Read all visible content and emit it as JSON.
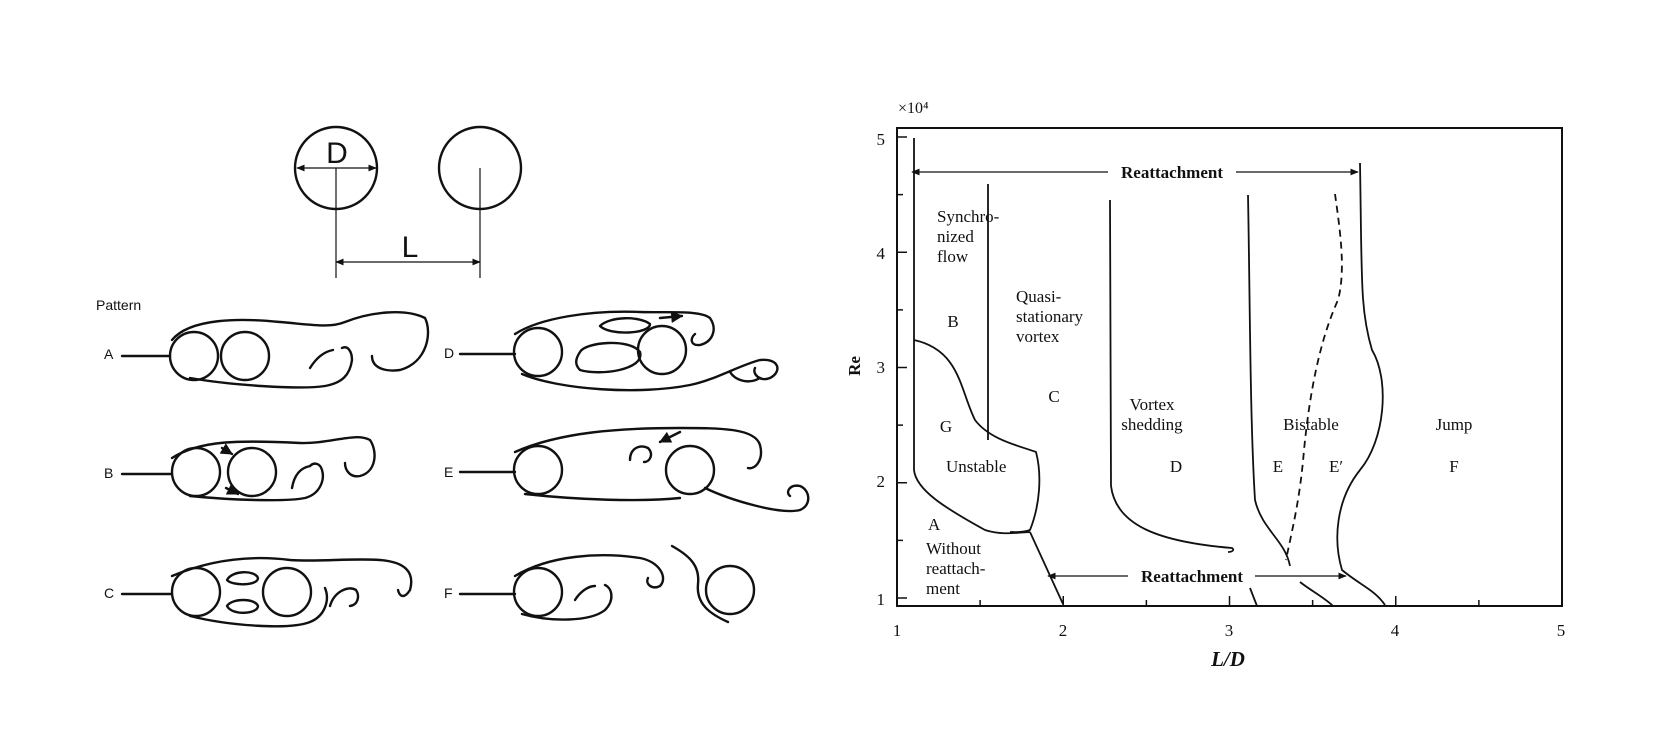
{
  "schematic": {
    "diameter_label": "D",
    "spacing_label": "L"
  },
  "patterns": {
    "heading": "Pattern",
    "items": [
      {
        "label": "A"
      },
      {
        "label": "B"
      },
      {
        "label": "C"
      },
      {
        "label": "D"
      },
      {
        "label": "E"
      },
      {
        "label": "F"
      }
    ]
  },
  "regime_map": {
    "axis_multiplier": "×10⁴",
    "xlabel": "L/D",
    "ylabel": "Re",
    "x_ticks": [
      "1",
      "2",
      "3",
      "4",
      "5"
    ],
    "y_ticks": [
      "1",
      "2",
      "3",
      "4",
      "5"
    ],
    "reattachment_top": "Reattachment",
    "reattachment_bottom": "Reattachment",
    "regions": {
      "synchronized": "Synchro-\nnized\nflow",
      "b": "B",
      "quasi": "Quasi-\nstationary\nvortex",
      "c": "C",
      "g": "G",
      "unstable": "Unstable",
      "a": "A",
      "without": "Without\nreattach-\nment",
      "vortex": "Vortex\nshedding",
      "d": "D",
      "bistable": "Bistable",
      "e": "E",
      "eprime": "E′",
      "jump": "Jump",
      "f": "F"
    }
  }
}
